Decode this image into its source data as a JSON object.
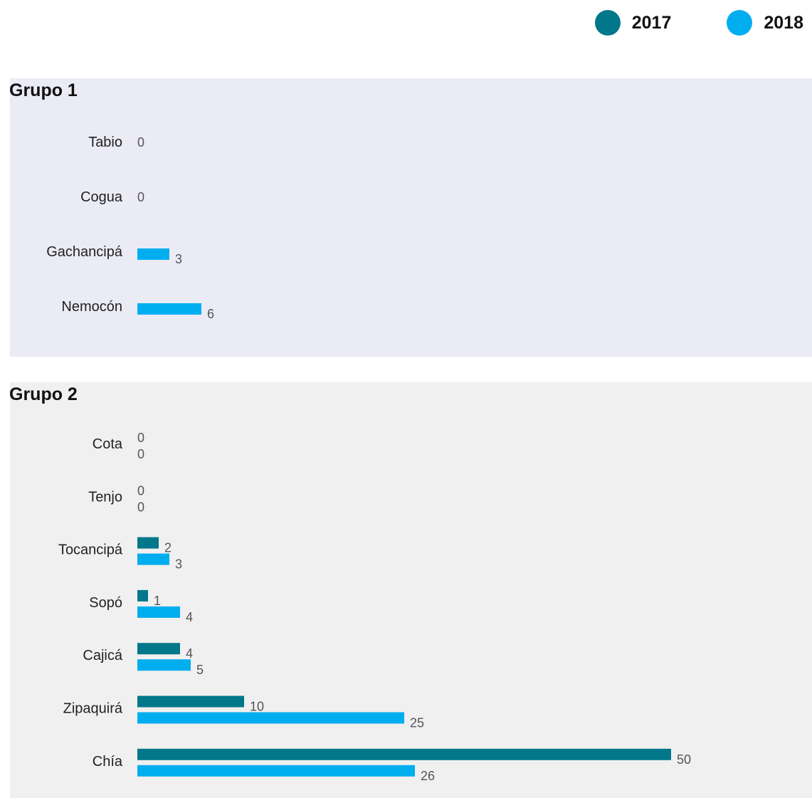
{
  "colors": {
    "s2017": "#00778a",
    "s2018": "#00aeef",
    "panel1": "#ebebf5",
    "panel2": "#f0f0f0"
  },
  "legend": {
    "items": [
      {
        "label": "2017",
        "color": "#00778a"
      },
      {
        "label": "2018",
        "color": "#00aeef"
      }
    ]
  },
  "chart_data": [
    {
      "type": "bar",
      "orientation": "horizontal",
      "title": "Grupo 1",
      "categories": [
        "Tabio",
        "Cogua",
        "Gachancipá",
        "Nemocón"
      ],
      "series": [
        {
          "name": "2018",
          "values": [
            0,
            0,
            3,
            6
          ]
        }
      ]
    },
    {
      "type": "bar",
      "orientation": "horizontal",
      "title": "Grupo 2",
      "categories": [
        "Cota",
        "Tenjo",
        "Tocancipá",
        "Sopó",
        "Cajicá",
        "Zipaquirá",
        "Chía"
      ],
      "series": [
        {
          "name": "2017",
          "values": [
            0,
            0,
            2,
            1,
            4,
            10,
            50
          ]
        },
        {
          "name": "2018",
          "values": [
            0,
            0,
            3,
            4,
            5,
            25,
            26
          ]
        }
      ]
    }
  ]
}
